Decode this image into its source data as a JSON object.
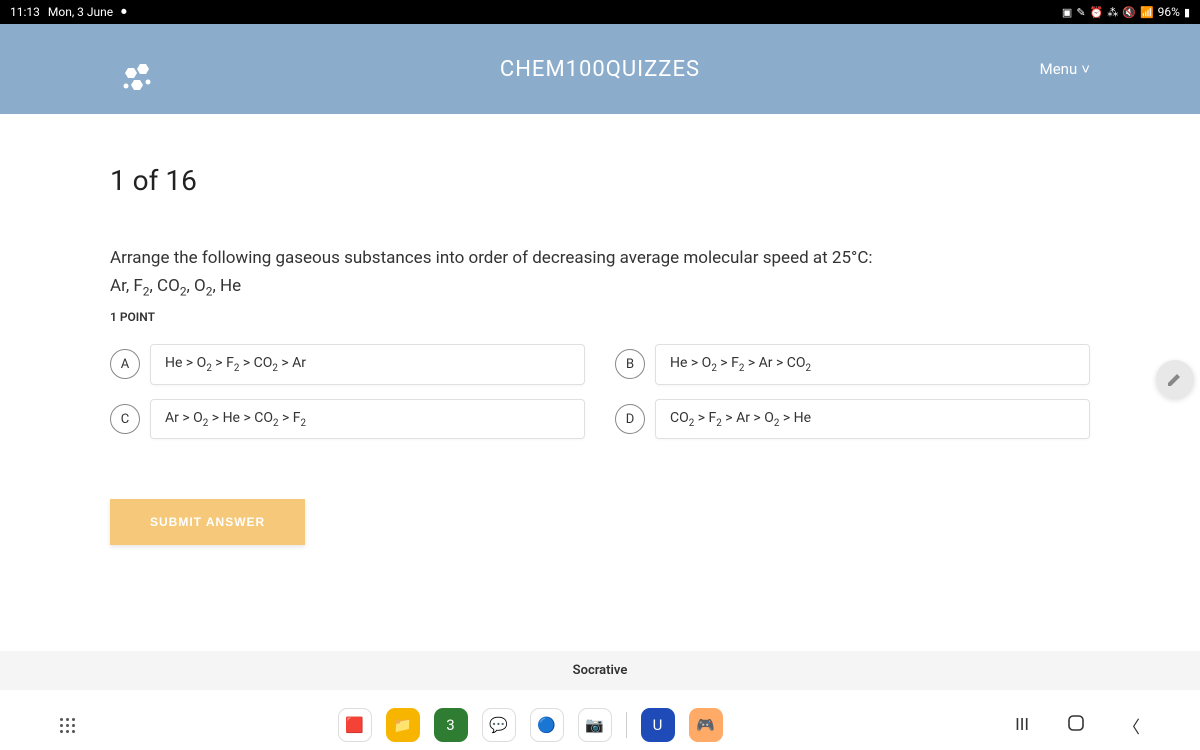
{
  "status": {
    "time": "11:13",
    "date": "Mon, 3 June",
    "battery": "96%"
  },
  "header": {
    "title": "CHEM100QUIZZES",
    "menu_label": "Menu"
  },
  "quiz": {
    "progress": "1 of 16",
    "question_line1": "Arrange the following gaseous substances into order of decreasing average molecular speed at 25°C:",
    "question_line2_html": "Ar, F<sub>2</sub>, CO<sub>2</sub>, O<sub>2</sub>, He",
    "points": "1 POINT",
    "options": [
      {
        "letter": "A",
        "html": "He > O<sub>2</sub> > F<sub>2</sub> > CO<sub>2</sub> > Ar"
      },
      {
        "letter": "B",
        "html": "He > O<sub>2</sub> > F<sub>2</sub> > Ar > CO<sub>2</sub>"
      },
      {
        "letter": "C",
        "html": "Ar > O<sub>2</sub> > He > CO<sub>2</sub> > F<sub>2</sub>"
      },
      {
        "letter": "D",
        "html": "CO<sub>2</sub> > F<sub>2</sub> > Ar > O<sub>2</sub> > He"
      }
    ],
    "submit_label": "SUBMIT ANSWER"
  },
  "footer": {
    "brand": "Socrative"
  },
  "dock": {
    "apps": [
      {
        "bg": "#ffffff",
        "glyph": "🟥",
        "name": "app1"
      },
      {
        "bg": "#f7b500",
        "glyph": "📁",
        "name": "app2"
      },
      {
        "bg": "#2e7d32",
        "glyph": "3",
        "name": "app3"
      },
      {
        "bg": "#ffffff",
        "glyph": "💬",
        "name": "app4"
      },
      {
        "bg": "#ffffff",
        "glyph": "🔵",
        "name": "app5"
      },
      {
        "bg": "#ffffff",
        "glyph": "📷",
        "name": "app6"
      },
      {
        "bg": "",
        "glyph": "",
        "name": "divider",
        "divider": true
      },
      {
        "bg": "#1e4bb8",
        "glyph": "U",
        "name": "app7"
      },
      {
        "bg": "#ffaa66",
        "glyph": "🎮",
        "name": "app8"
      }
    ]
  },
  "colors": {
    "header_bg": "#8baccb",
    "submit_bg": "#f5c87a"
  }
}
